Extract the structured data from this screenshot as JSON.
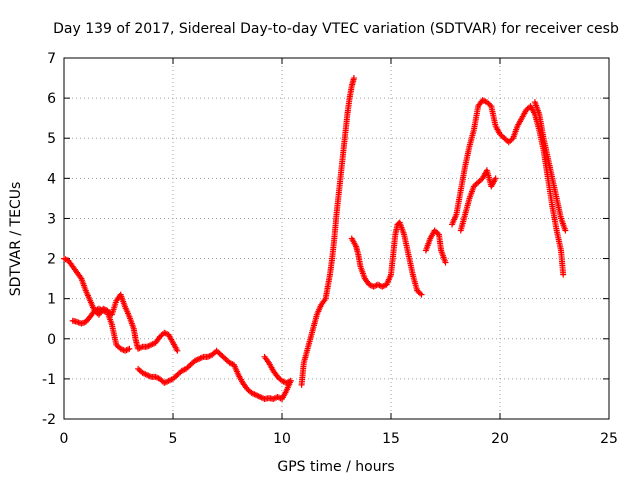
{
  "chart_data": {
    "type": "scatter",
    "title": "Day 139 of 2017, Sidereal Day-to-day VTEC variation (SDTVAR) for receiver cesb",
    "xlabel": "GPS time / hours",
    "ylabel": "SDTVAR / TECUs",
    "xlim": [
      0,
      25
    ],
    "ylim": [
      -2,
      7
    ],
    "xticks": [
      "0",
      "5",
      "10",
      "15",
      "20",
      "25"
    ],
    "yticks": [
      "-2",
      "-1",
      "0",
      "1",
      "2",
      "3",
      "4",
      "5",
      "6",
      "7"
    ],
    "grid": true,
    "marker": "plus",
    "color": "#ff0000",
    "series": [
      {
        "segments": [
          [
            [
              0.0,
              2.0
            ],
            [
              0.2,
              1.95
            ],
            [
              0.4,
              1.8
            ],
            [
              0.6,
              1.65
            ],
            [
              0.8,
              1.5
            ],
            [
              1.0,
              1.2
            ],
            [
              1.2,
              0.95
            ],
            [
              1.4,
              0.7
            ],
            [
              1.6,
              0.6
            ],
            [
              1.8,
              0.75
            ],
            [
              2.0,
              0.7
            ],
            [
              2.2,
              0.6
            ],
            [
              2.4,
              0.95
            ],
            [
              2.6,
              1.1
            ],
            [
              2.8,
              0.8
            ],
            [
              3.0,
              0.55
            ],
            [
              3.2,
              0.25
            ],
            [
              3.3,
              -0.05
            ],
            [
              3.4,
              -0.25
            ],
            [
              3.6,
              -0.2
            ],
            [
              3.8,
              -0.2
            ],
            [
              4.0,
              -0.15
            ],
            [
              4.2,
              -0.1
            ],
            [
              4.4,
              0.05
            ],
            [
              4.6,
              0.15
            ],
            [
              4.8,
              0.1
            ],
            [
              5.0,
              -0.1
            ],
            [
              5.2,
              -0.3
            ]
          ],
          [
            [
              0.4,
              0.45
            ],
            [
              0.6,
              0.42
            ],
            [
              0.8,
              0.38
            ],
            [
              1.0,
              0.42
            ],
            [
              1.2,
              0.55
            ],
            [
              1.4,
              0.7
            ],
            [
              1.6,
              0.75
            ],
            [
              1.8,
              0.7
            ],
            [
              2.0,
              0.65
            ],
            [
              2.2,
              0.35
            ],
            [
              2.4,
              -0.15
            ],
            [
              2.6,
              -0.25
            ],
            [
              2.8,
              -0.3
            ],
            [
              3.0,
              -0.25
            ]
          ],
          [
            [
              3.4,
              -0.75
            ],
            [
              3.6,
              -0.85
            ],
            [
              3.8,
              -0.9
            ],
            [
              4.0,
              -0.95
            ],
            [
              4.2,
              -0.95
            ],
            [
              4.4,
              -1.0
            ],
            [
              4.6,
              -1.1
            ],
            [
              4.8,
              -1.05
            ],
            [
              5.0,
              -1.0
            ],
            [
              5.2,
              -0.9
            ],
            [
              5.4,
              -0.8
            ],
            [
              5.6,
              -0.75
            ],
            [
              5.8,
              -0.65
            ],
            [
              6.0,
              -0.55
            ],
            [
              6.2,
              -0.5
            ],
            [
              6.4,
              -0.45
            ],
            [
              6.6,
              -0.45
            ],
            [
              6.8,
              -0.4
            ],
            [
              7.0,
              -0.3
            ],
            [
              7.2,
              -0.4
            ],
            [
              7.4,
              -0.5
            ],
            [
              7.6,
              -0.6
            ],
            [
              7.8,
              -0.65
            ],
            [
              8.0,
              -0.9
            ],
            [
              8.2,
              -1.1
            ],
            [
              8.4,
              -1.25
            ],
            [
              8.6,
              -1.35
            ],
            [
              8.8,
              -1.4
            ],
            [
              9.0,
              -1.45
            ],
            [
              9.2,
              -1.5
            ],
            [
              9.4,
              -1.48
            ],
            [
              9.6,
              -1.5
            ],
            [
              9.8,
              -1.45
            ],
            [
              10.0,
              -1.5
            ],
            [
              10.2,
              -1.3
            ],
            [
              10.4,
              -1.05
            ]
          ],
          [
            [
              9.2,
              -0.45
            ],
            [
              9.4,
              -0.6
            ],
            [
              9.6,
              -0.8
            ],
            [
              9.8,
              -0.95
            ],
            [
              10.0,
              -1.05
            ],
            [
              10.2,
              -1.1
            ],
            [
              10.4,
              -1.05
            ]
          ],
          [
            [
              10.9,
              -1.15
            ],
            [
              11.0,
              -0.6
            ],
            [
              11.2,
              -0.2
            ],
            [
              11.4,
              0.2
            ],
            [
              11.6,
              0.6
            ],
            [
              11.8,
              0.85
            ],
            [
              12.0,
              1.0
            ],
            [
              12.1,
              1.3
            ],
            [
              12.2,
              1.6
            ],
            [
              12.3,
              2.0
            ],
            [
              12.4,
              2.5
            ],
            [
              12.5,
              3.1
            ],
            [
              12.6,
              3.6
            ],
            [
              12.7,
              4.1
            ],
            [
              12.8,
              4.6
            ],
            [
              12.9,
              5.1
            ],
            [
              13.0,
              5.6
            ],
            [
              13.1,
              6.0
            ],
            [
              13.2,
              6.3
            ],
            [
              13.3,
              6.5
            ]
          ],
          [
            [
              13.2,
              2.5
            ],
            [
              13.4,
              2.3
            ],
            [
              13.5,
              2.1
            ],
            [
              13.6,
              1.8
            ],
            [
              13.8,
              1.5
            ],
            [
              14.0,
              1.35
            ],
            [
              14.2,
              1.3
            ],
            [
              14.4,
              1.35
            ],
            [
              14.6,
              1.3
            ],
            [
              14.8,
              1.35
            ],
            [
              15.0,
              1.6
            ],
            [
              15.1,
              2.1
            ],
            [
              15.2,
              2.6
            ],
            [
              15.3,
              2.85
            ],
            [
              15.4,
              2.9
            ],
            [
              15.6,
              2.6
            ],
            [
              15.8,
              2.1
            ],
            [
              16.0,
              1.6
            ],
            [
              16.2,
              1.2
            ],
            [
              16.4,
              1.1
            ]
          ],
          [
            [
              16.6,
              2.2
            ],
            [
              16.8,
              2.5
            ],
            [
              17.0,
              2.7
            ],
            [
              17.2,
              2.6
            ],
            [
              17.3,
              2.2
            ],
            [
              17.5,
              1.9
            ]
          ],
          [
            [
              17.8,
              2.85
            ],
            [
              18.0,
              3.1
            ],
            [
              18.2,
              3.7
            ],
            [
              18.4,
              4.3
            ],
            [
              18.6,
              4.8
            ],
            [
              18.8,
              5.2
            ],
            [
              19.0,
              5.8
            ],
            [
              19.2,
              5.95
            ],
            [
              19.4,
              5.9
            ],
            [
              19.6,
              5.8
            ],
            [
              19.8,
              5.3
            ],
            [
              20.0,
              5.1
            ],
            [
              20.2,
              5.0
            ],
            [
              20.4,
              4.9
            ],
            [
              20.6,
              5.0
            ],
            [
              20.8,
              5.3
            ],
            [
              21.0,
              5.5
            ],
            [
              21.2,
              5.7
            ],
            [
              21.4,
              5.8
            ],
            [
              21.6,
              5.6
            ],
            [
              21.8,
              5.2
            ],
            [
              22.0,
              4.7
            ],
            [
              22.2,
              4.0
            ],
            [
              22.4,
              3.3
            ],
            [
              22.6,
              2.7
            ],
            [
              22.8,
              2.2
            ],
            [
              22.9,
              1.6
            ]
          ],
          [
            [
              18.2,
              2.7
            ],
            [
              18.4,
              3.1
            ],
            [
              18.6,
              3.5
            ],
            [
              18.8,
              3.8
            ],
            [
              19.0,
              3.9
            ],
            [
              19.2,
              4.0
            ],
            [
              19.4,
              4.2
            ],
            [
              19.6,
              3.8
            ],
            [
              19.8,
              4.0
            ]
          ],
          [
            [
              21.6,
              5.9
            ],
            [
              21.8,
              5.6
            ],
            [
              22.0,
              5.0
            ],
            [
              22.2,
              4.5
            ],
            [
              22.4,
              4.0
            ],
            [
              22.6,
              3.5
            ],
            [
              22.8,
              3.0
            ],
            [
              23.0,
              2.7
            ]
          ]
        ]
      }
    ]
  }
}
